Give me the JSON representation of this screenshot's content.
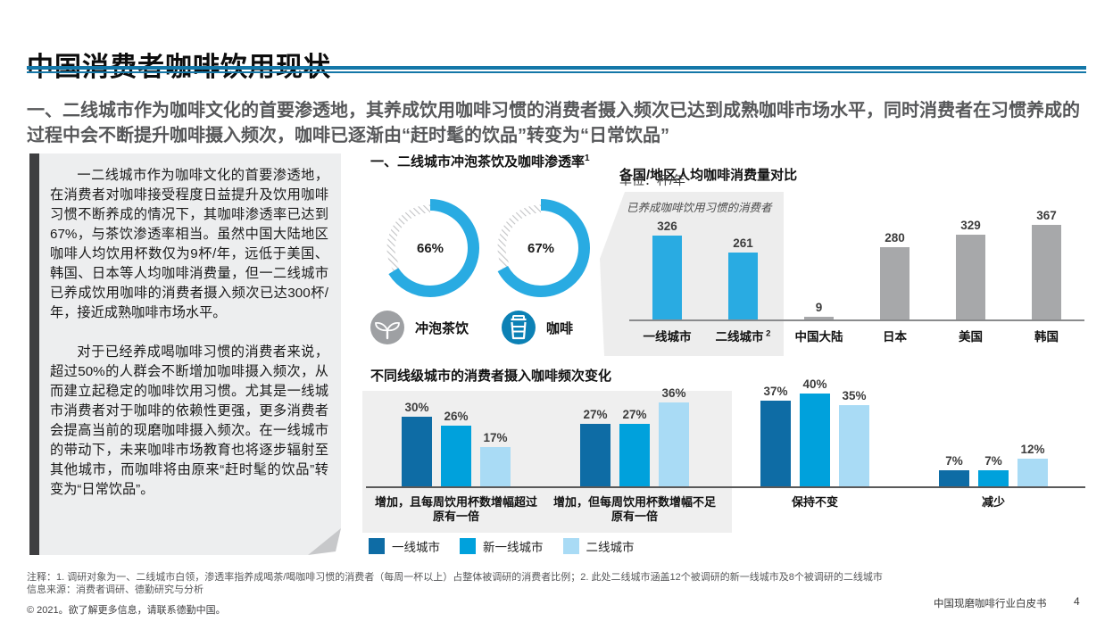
{
  "page": {
    "title": "中国消费者咖啡饮用现状",
    "subtitle": "一、二线城市作为咖啡文化的首要渗透地，其养成饮用咖啡习惯的消费者摄入频次已达到成熟咖啡市场水平，同时消费者在习惯养成的过程中会不断提升咖啡摄入频次，咖啡已逐渐由“赶时髦的饮品”转变为“日常饮品”",
    "footer": {
      "notes": "注释：1. 调研对象为一、二线城市白领，渗透率指养成喝茶/喝咖啡习惯的消费者（每周一杯以上）占整体被调研的消费者比例；2. 此处二线城市涵盖12个被调研的新一线城市及8个被调研的二线城市",
      "source": "信息来源：消费者调研、德勤研究与分析",
      "copyright": "© 2021。欲了解更多信息，请联系德勤中国。",
      "doc_title": "中国现磨咖啡行业白皮书",
      "page_number": "4"
    }
  },
  "sidebar": {
    "paragraph1": "一二线城市作为咖啡文化的首要渗透地，在消费者对咖啡接受程度日益提升及饮用咖啡习惯不断养成的情况下，其咖啡渗透率已达到67%，与茶饮渗透率相当。虽然中国大陆地区咖啡人均饮用杯数仅为9杯/年，远低于美国、韩国、日本等人均咖啡消费量，但一二线城市已养成饮用咖啡的消费者摄入频次已达300杯/年，接近成熟咖啡市场水平。",
    "paragraph2": "对于已经养成喝咖啡习惯的消费者来说，超过50%的人群会不断增加咖啡摄入频次，从而建立起稳定的咖啡饮用习惯。尤其是一线城市消费者对于咖啡的依赖性更强，更多消费者会提高当前的现磨咖啡摄入频次。在一线城市的带动下，未来咖啡市场教育也将逐步辐射至其他城市，而咖啡将由原来“赶时髦的饮品”转变为“日常饮品”。"
  },
  "colors": {
    "divider_blue": "#1477a8",
    "accent_blue": "#29abe2",
    "tier1_blue": "#0e6ca5",
    "new_tier1_blue": "#00a1dc",
    "tier2_blue": "#a9dbf5",
    "bar_gray": "#a7a8aa",
    "hatch_gray": "#c2c3c5",
    "tea_icon_gray": "#9ea0a3",
    "coffee_icon_blue": "#0c81b5"
  },
  "chart_data": [
    {
      "type": "pie",
      "title": "一、二线城市冲泡茶饮及咖啡渗透率",
      "title_superscript": "1",
      "arc_color": "#29abe2",
      "remainder_style": "gray-diagonal-hatch",
      "donuts": [
        {
          "label": "冲泡茶饮",
          "value_pct": 66,
          "display": "66%",
          "icon": "tea-sprout-icon",
          "icon_color": "#9ea0a3"
        },
        {
          "label": "咖啡",
          "value_pct": 67,
          "display": "67%",
          "icon": "coffee-cup-icon",
          "icon_color": "#0c81b5"
        }
      ]
    },
    {
      "type": "bar",
      "title": "各国/地区人均咖啡消费量对比",
      "unit_label": "单位：杯/年",
      "callout": "已养成咖啡饮用习惯的消费者",
      "categories": [
        "一线城市",
        "二线城市",
        "中国大陆",
        "日本",
        "美国",
        "韩国"
      ],
      "category_superscripts": [
        "",
        "2",
        "",
        "",
        "",
        ""
      ],
      "values": [
        326,
        261,
        9,
        280,
        329,
        367
      ],
      "bar_colors": [
        "#29abe2",
        "#29abe2",
        "#a7a8aa",
        "#a7a8aa",
        "#a7a8aa",
        "#a7a8aa"
      ],
      "ylim": [
        0,
        388
      ],
      "grid": false
    },
    {
      "type": "bar",
      "title": "不同线级城市的消费者摄入咖啡频次变化",
      "categories": [
        "增加，且每周饮用杯数增幅超过原有一倍",
        "增加，但每周饮用杯数增幅不足原有一倍",
        "保持不变",
        "减少"
      ],
      "series": [
        {
          "name": "一线城市",
          "color": "#0e6ca5",
          "values": [
            30,
            27,
            37,
            7
          ]
        },
        {
          "name": "新一线城市",
          "color": "#00a1dc",
          "values": [
            26,
            27,
            40,
            7
          ]
        },
        {
          "name": "二线城市",
          "color": "#a9dbf5",
          "values": [
            17,
            36,
            35,
            12
          ]
        }
      ],
      "value_suffix": "%",
      "ylim": [
        0,
        45
      ],
      "highlight_panel_groups": [
        0,
        1
      ],
      "legend_position": "bottom-left",
      "grid": false
    }
  ]
}
